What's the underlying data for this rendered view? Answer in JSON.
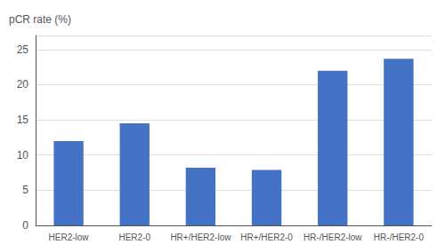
{
  "chart_data": {
    "type": "bar",
    "ylabel": "pCR rate (%)",
    "categories": [
      "HER2-low",
      "HER2-0",
      "HR+/HER2-low",
      "HR+/HER2-0",
      "HR-/HER2-low",
      "HR-/HER2-0"
    ],
    "values": [
      12.0,
      14.5,
      8.2,
      7.9,
      22.0,
      23.7
    ],
    "color": "#4472C4",
    "ylim": [
      0,
      27
    ],
    "yticks": [
      0,
      5,
      10,
      15,
      20,
      25
    ],
    "grid": true
  }
}
